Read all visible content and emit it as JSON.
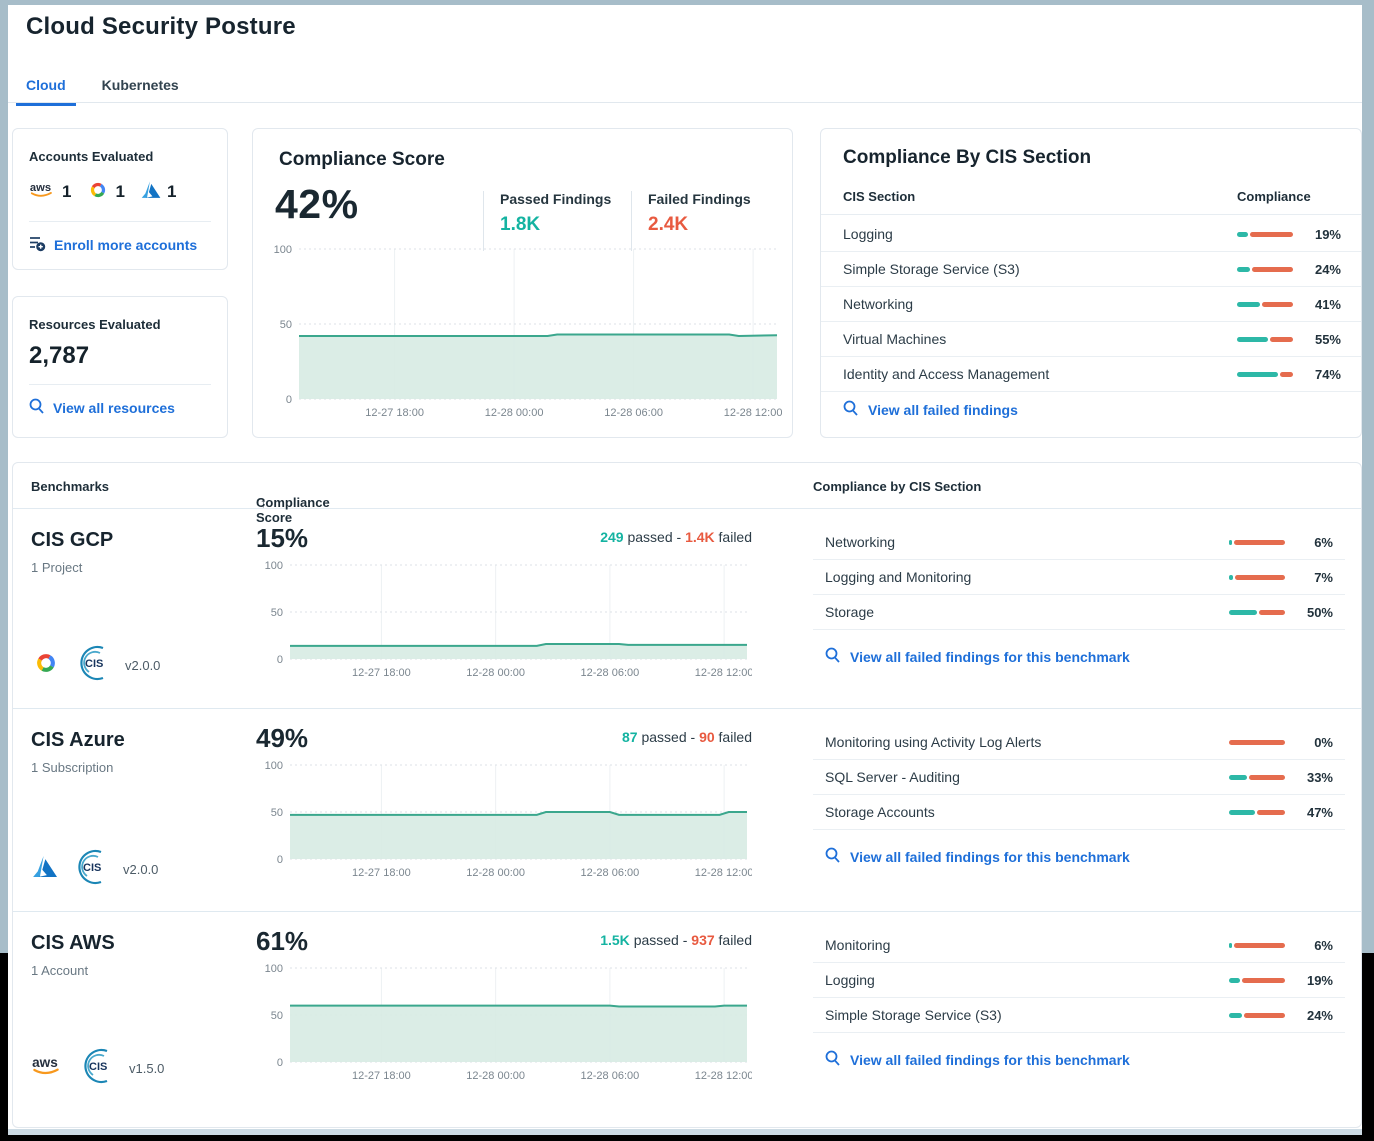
{
  "page": {
    "title": "Cloud Security Posture"
  },
  "tabs": [
    {
      "label": "Cloud",
      "active": true
    },
    {
      "label": "Kubernetes",
      "active": false
    }
  ],
  "colors": {
    "accent_blue": "#1e6fd9",
    "teal": "#2db8a7",
    "orange_red": "#e56c4e",
    "teal_text": "#14b3a1",
    "red_text": "#e85a40",
    "frame": "#a7bdc9",
    "black_zone": "#000000"
  },
  "accounts_card": {
    "title": "Accounts Evaluated",
    "providers": [
      {
        "name": "aws",
        "count": "1"
      },
      {
        "name": "gcp",
        "count": "1"
      },
      {
        "name": "azure",
        "count": "1"
      }
    ],
    "link": "Enroll more accounts"
  },
  "resources_card": {
    "title": "Resources Evaluated",
    "count": "2,787",
    "link": "View all resources"
  },
  "score_card": {
    "title": "Compliance Score",
    "score": "42%",
    "passed_label": "Passed Findings",
    "passed_value": "1.8K",
    "failed_label": "Failed Findings",
    "failed_value": "2.4K"
  },
  "cis_card": {
    "title": "Compliance By CIS Section",
    "col_section": "CIS Section",
    "col_compliance": "Compliance",
    "rows": [
      {
        "label": "Logging",
        "pct": 19,
        "pct_label": "19%"
      },
      {
        "label": "Simple Storage Service (S3)",
        "pct": 24,
        "pct_label": "24%"
      },
      {
        "label": "Networking",
        "pct": 41,
        "pct_label": "41%"
      },
      {
        "label": "Virtual Machines",
        "pct": 55,
        "pct_label": "55%"
      },
      {
        "label": "Identity and Access Management",
        "pct": 74,
        "pct_label": "74%"
      }
    ],
    "link": "View all failed findings"
  },
  "benchmarks": {
    "col_benchmarks": "Benchmarks",
    "col_score": "Compliance Score",
    "sort_indicator": "↑",
    "col_cis": "Compliance by CIS Section",
    "passed_suffix": "passed -",
    "failed_suffix": "failed",
    "link_label": "View all failed findings for this benchmark",
    "rows": [
      {
        "name": "CIS GCP",
        "scope": "1 Project",
        "provider": "gcp",
        "version": "v2.0.0",
        "score": "15%",
        "passed_value": "249",
        "failed_value": "1.4K",
        "sections": [
          {
            "label": "Networking",
            "pct": 6,
            "pct_label": "6%"
          },
          {
            "label": "Logging and Monitoring",
            "pct": 7,
            "pct_label": "7%"
          },
          {
            "label": "Storage",
            "pct": 50,
            "pct_label": "50%"
          }
        ]
      },
      {
        "name": "CIS Azure",
        "scope": "1 Subscription",
        "provider": "azure",
        "version": "v2.0.0",
        "score": "49%",
        "passed_value": "87",
        "failed_value": "90",
        "sections": [
          {
            "label": "Monitoring using Activity Log Alerts",
            "pct": 0,
            "pct_label": "0%"
          },
          {
            "label": "SQL Server - Auditing",
            "pct": 33,
            "pct_label": "33%"
          },
          {
            "label": "Storage Accounts",
            "pct": 47,
            "pct_label": "47%"
          }
        ]
      },
      {
        "name": "CIS AWS",
        "scope": "1 Account",
        "provider": "aws",
        "version": "v1.5.0",
        "score": "61%",
        "passed_value": "1.5K",
        "failed_value": "937",
        "sections": [
          {
            "label": "Monitoring",
            "pct": 6,
            "pct_label": "6%"
          },
          {
            "label": "Logging",
            "pct": 19,
            "pct_label": "19%"
          },
          {
            "label": "Simple Storage Service (S3)",
            "pct": 24,
            "pct_label": "24%"
          }
        ]
      }
    ]
  },
  "chart_data": [
    {
      "type": "area",
      "title": "Compliance Score trend (overall 42%)",
      "ylim": [
        0,
        100
      ],
      "yticks": [
        0,
        50,
        100
      ],
      "grid": true,
      "xticks": [
        {
          "pos": 0.2,
          "label": "12-27 18:00"
        },
        {
          "pos": 0.45,
          "label": "12-28 00:00"
        },
        {
          "pos": 0.7,
          "label": "12-28 06:00"
        },
        {
          "pos": 0.95,
          "label": "12-28 12:00"
        }
      ],
      "points": [
        [
          0,
          42
        ],
        [
          0.52,
          42
        ],
        [
          0.54,
          43
        ],
        [
          0.9,
          43
        ],
        [
          0.92,
          42
        ],
        [
          1,
          42.5
        ]
      ]
    },
    {
      "type": "area",
      "title": "CIS GCP compliance trend (15%)",
      "ylim": [
        0,
        100
      ],
      "yticks": [
        0,
        50,
        100
      ],
      "grid": true,
      "xticks": [
        {
          "pos": 0.2,
          "label": "12-27 18:00"
        },
        {
          "pos": 0.45,
          "label": "12-28 00:00"
        },
        {
          "pos": 0.7,
          "label": "12-28 06:00"
        },
        {
          "pos": 0.95,
          "label": "12-28 12:00"
        }
      ],
      "points": [
        [
          0,
          14
        ],
        [
          0.54,
          14
        ],
        [
          0.56,
          16
        ],
        [
          0.72,
          16
        ],
        [
          0.74,
          15
        ],
        [
          1,
          15
        ]
      ]
    },
    {
      "type": "area",
      "title": "CIS Azure compliance trend (49%)",
      "ylim": [
        0,
        100
      ],
      "yticks": [
        0,
        50,
        100
      ],
      "grid": true,
      "xticks": [
        {
          "pos": 0.2,
          "label": "12-27 18:00"
        },
        {
          "pos": 0.45,
          "label": "12-28 00:00"
        },
        {
          "pos": 0.7,
          "label": "12-28 06:00"
        },
        {
          "pos": 0.95,
          "label": "12-28 12:00"
        }
      ],
      "points": [
        [
          0,
          47
        ],
        [
          0.54,
          47
        ],
        [
          0.56,
          50
        ],
        [
          0.7,
          50
        ],
        [
          0.72,
          47
        ],
        [
          0.94,
          47
        ],
        [
          0.96,
          50
        ],
        [
          1,
          50
        ]
      ]
    },
    {
      "type": "area",
      "title": "CIS AWS compliance trend (61%)",
      "ylim": [
        0,
        100
      ],
      "yticks": [
        0,
        50,
        100
      ],
      "grid": true,
      "xticks": [
        {
          "pos": 0.2,
          "label": "12-27 18:00"
        },
        {
          "pos": 0.45,
          "label": "12-28 00:00"
        },
        {
          "pos": 0.7,
          "label": "12-28 06:00"
        },
        {
          "pos": 0.95,
          "label": "12-28 12:00"
        }
      ],
      "points": [
        [
          0,
          60
        ],
        [
          0.7,
          60
        ],
        [
          0.72,
          59
        ],
        [
          0.93,
          59
        ],
        [
          0.95,
          60
        ],
        [
          1,
          60
        ]
      ]
    }
  ]
}
